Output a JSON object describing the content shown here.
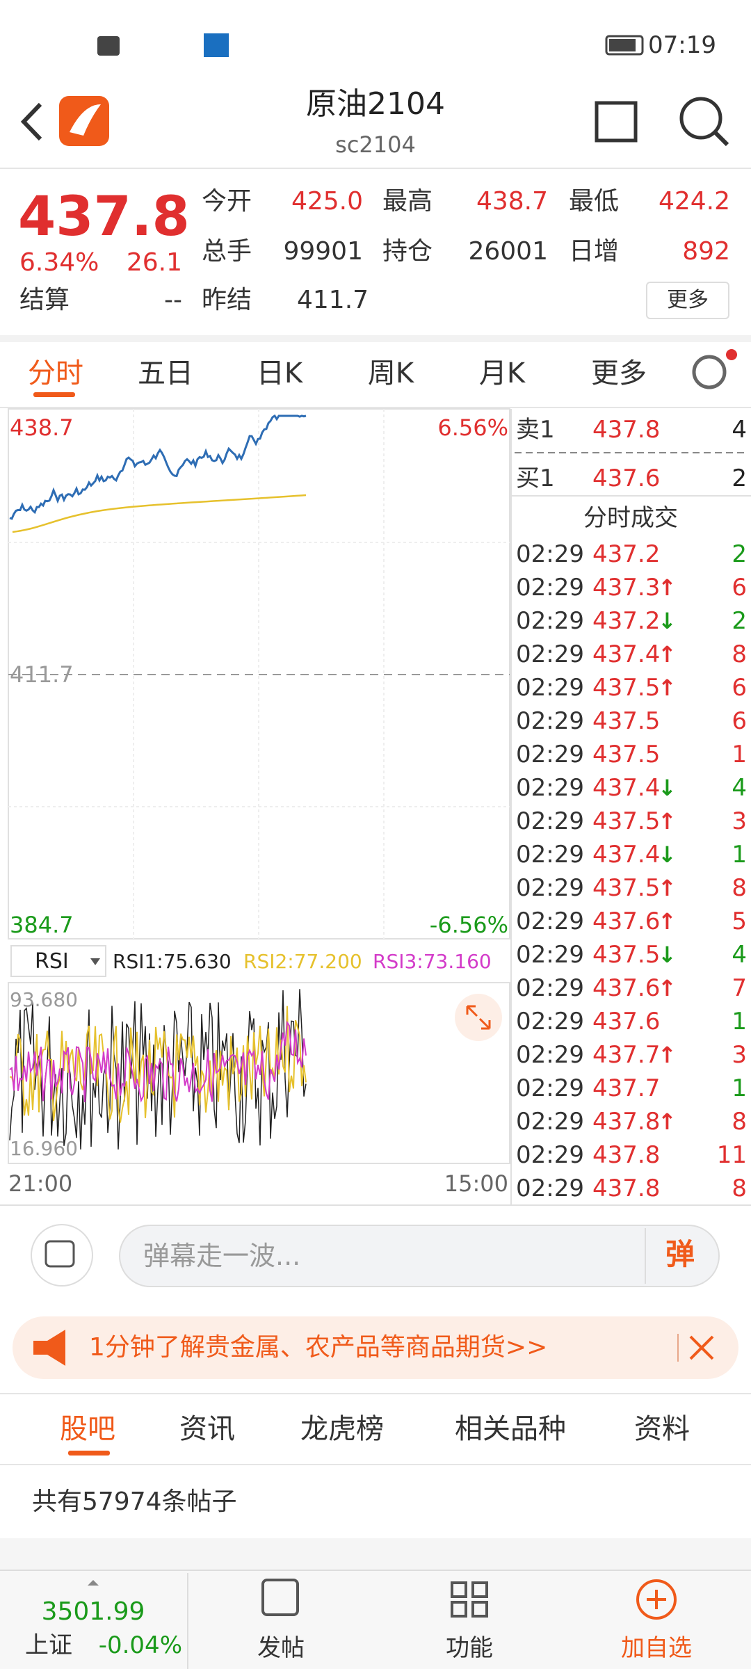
{
  "status": {
    "time": "07:19"
  },
  "header": {
    "title": "原油2104",
    "code": "sc2104"
  },
  "quote": {
    "price": "437.8",
    "change_pct": "6.34%",
    "change": "26.1",
    "fields": [
      {
        "label": "今开",
        "value": "425.0"
      },
      {
        "label": "最高",
        "value": "438.7"
      },
      {
        "label": "最低",
        "value": "424.2"
      },
      {
        "label": "总手",
        "value": "99901"
      },
      {
        "label": "持仓",
        "value": "26001"
      },
      {
        "label": "日增",
        "value": "892"
      },
      {
        "label": "结算",
        "value": "--"
      },
      {
        "label": "昨结",
        "value": "411.7"
      }
    ],
    "more": "更多"
  },
  "tabs": [
    "分时",
    "五日",
    "日K",
    "周K",
    "月K",
    "更多"
  ],
  "chart": {
    "top_left": "438.7",
    "top_right": "6.56%",
    "mid": "411.7",
    "bottom_left": "384.7",
    "bottom_right": "-6.56%",
    "indicator": "RSI",
    "rsi_labels": [
      "RSI1:75.630",
      "RSI2:77.200",
      "RSI3:73.160"
    ],
    "rsi_top": "93.680",
    "rsi_bottom": "16.960",
    "x_start": "21:00",
    "x_end": "15:00"
  },
  "order_book": [
    {
      "side": "卖1",
      "price": "437.8",
      "qty": "4"
    },
    {
      "side": "买1",
      "price": "437.6",
      "qty": "2"
    }
  ],
  "trades_title": "分时成交",
  "trades": [
    {
      "time": "02:29",
      "price": "437.2",
      "qty": "2",
      "qty_color": "#1a9a1a"
    },
    {
      "time": "02:29",
      "price": "437.3",
      "dir": "↑",
      "qty": "6",
      "qty_color": "#e02f2f"
    },
    {
      "time": "02:29",
      "price": "437.2",
      "dir": "↓",
      "qty": "2",
      "qty_color": "#1a9a1a"
    },
    {
      "time": "02:29",
      "price": "437.4",
      "dir": "↑",
      "qty": "8",
      "qty_color": "#e02f2f"
    },
    {
      "time": "02:29",
      "price": "437.5",
      "dir": "↑",
      "qty": "6",
      "qty_color": "#e02f2f"
    },
    {
      "time": "02:29",
      "price": "437.5",
      "qty": "6",
      "qty_color": "#e02f2f"
    },
    {
      "time": "02:29",
      "price": "437.5",
      "qty": "1",
      "qty_color": "#e02f2f"
    },
    {
      "time": "02:29",
      "price": "437.4",
      "dir": "↓",
      "qty": "4",
      "qty_color": "#1a9a1a"
    },
    {
      "time": "02:29",
      "price": "437.5",
      "dir": "↑",
      "qty": "3",
      "qty_color": "#e02f2f"
    },
    {
      "time": "02:29",
      "price": "437.4",
      "dir": "↓",
      "qty": "1",
      "qty_color": "#1a9a1a"
    },
    {
      "time": "02:29",
      "price": "437.5",
      "dir": "↑",
      "qty": "8",
      "qty_color": "#e02f2f"
    },
    {
      "time": "02:29",
      "price": "437.6",
      "dir": "↑",
      "qty": "5",
      "qty_color": "#e02f2f"
    },
    {
      "time": "02:29",
      "price": "437.5",
      "dir": "↓",
      "qty": "4",
      "qty_color": "#1a9a1a"
    },
    {
      "time": "02:29",
      "price": "437.6",
      "dir": "↑",
      "qty": "7",
      "qty_color": "#e02f2f"
    },
    {
      "time": "02:29",
      "price": "437.6",
      "qty": "1",
      "qty_color": "#1a9a1a"
    },
    {
      "time": "02:29",
      "price": "437.7",
      "dir": "↑",
      "qty": "3",
      "qty_color": "#e02f2f"
    },
    {
      "time": "02:29",
      "price": "437.7",
      "qty": "1",
      "qty_color": "#1a9a1a"
    },
    {
      "time": "02:29",
      "price": "437.8",
      "dir": "↑",
      "qty": "8",
      "qty_color": "#e02f2f"
    },
    {
      "time": "02:29",
      "price": "437.8",
      "qty": "11",
      "qty_color": "#e02f2f"
    },
    {
      "time": "02:29",
      "price": "437.8",
      "qty": "8",
      "qty_color": "#e02f2f"
    }
  ],
  "comment": {
    "placeholder": "弹幕走一波...",
    "button": "弹"
  },
  "banner": "1分钟了解贵金属、农产品等商品期货>>",
  "section_tabs": [
    "股吧",
    "资讯",
    "龙虎榜",
    "相关品种",
    "资料"
  ],
  "post_count": "共有57974条帖子",
  "bottom": {
    "index_value": "3501.99",
    "index_name": "上证",
    "index_change": "-0.04%",
    "nav": [
      "发帖",
      "功能",
      "加自选"
    ]
  }
}
